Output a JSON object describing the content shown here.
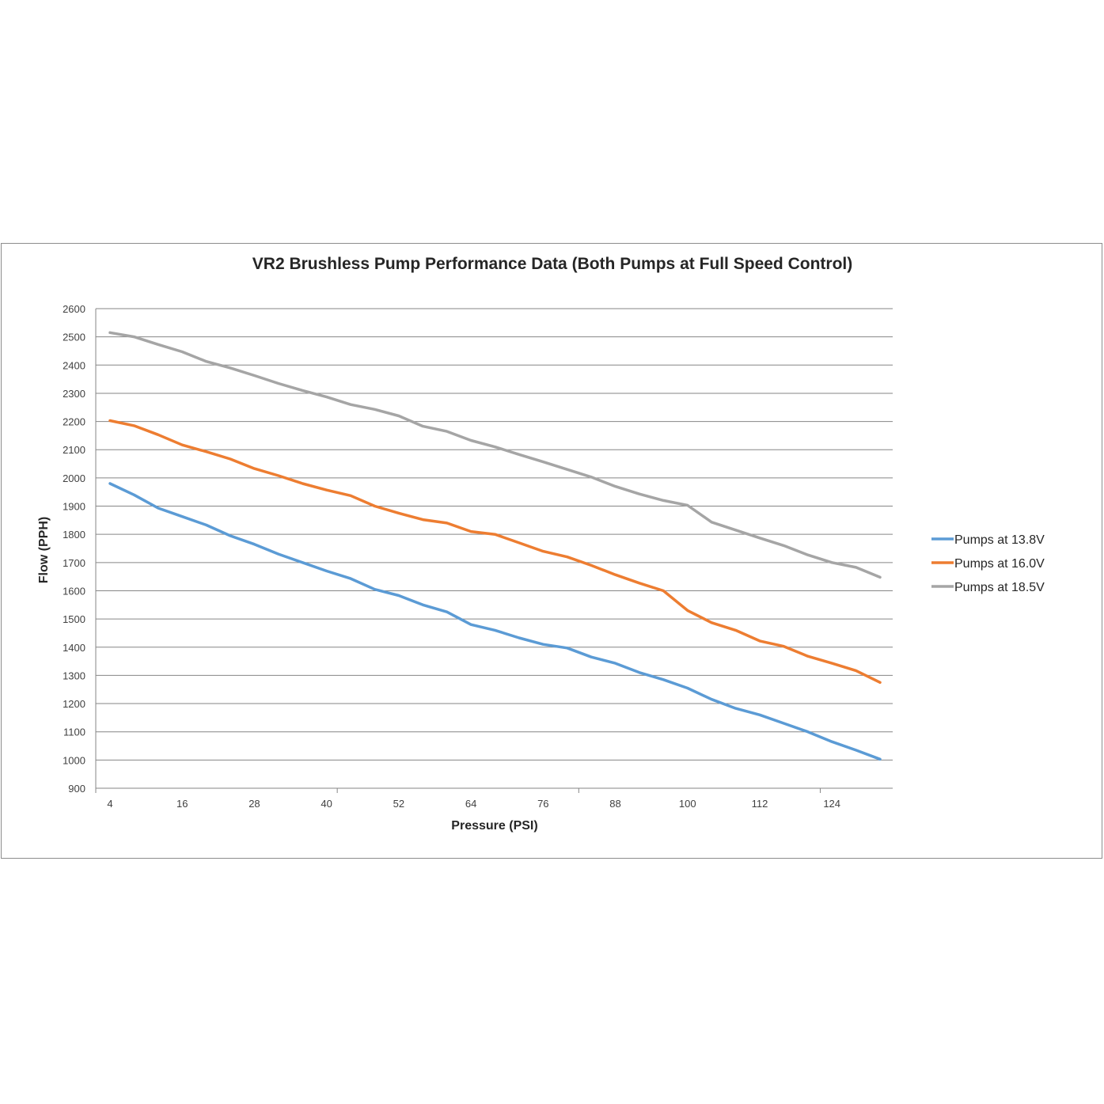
{
  "chart_data": {
    "type": "line",
    "title": "VR2 Brushless Pump Performance Data (Both  Pumps at Full Speed Control)",
    "xlabel": "Pressure (PSI)",
    "ylabel": "Flow (PPH)",
    "ylim": [
      900,
      2600
    ],
    "y_ticks": [
      900,
      1000,
      1100,
      1200,
      1300,
      1400,
      1500,
      1600,
      1700,
      1800,
      1900,
      2000,
      2100,
      2200,
      2300,
      2400,
      2500,
      2600
    ],
    "x_tick_labels": [
      "4",
      "16",
      "28",
      "40",
      "52",
      "64",
      "76",
      "88",
      "100",
      "112",
      "124"
    ],
    "x": [
      4,
      8,
      12,
      16,
      20,
      24,
      28,
      32,
      36,
      40,
      44,
      48,
      52,
      56,
      60,
      64,
      68,
      72,
      76,
      80,
      84,
      88,
      92,
      96,
      100,
      104,
      108,
      112,
      116,
      120,
      124,
      128,
      132
    ],
    "grid": true,
    "legend_position": "right",
    "series": [
      {
        "name": "Pumps at 13.8V",
        "color": "#5b9bd5",
        "values": [
          1980,
          1940,
          1893,
          1863,
          1833,
          1795,
          1765,
          1730,
          1700,
          1670,
          1643,
          1605,
          1583,
          1550,
          1525,
          1480,
          1460,
          1433,
          1410,
          1397,
          1365,
          1343,
          1310,
          1285,
          1255,
          1215,
          1183,
          1160,
          1130,
          1100,
          1065,
          1035,
          1003
        ]
      },
      {
        "name": "Pumps at 16.0V",
        "color": "#ed7d31",
        "values": [
          2203,
          2185,
          2153,
          2117,
          2093,
          2067,
          2033,
          2008,
          1980,
          1957,
          1937,
          1900,
          1875,
          1852,
          1840,
          1810,
          1800,
          1770,
          1740,
          1720,
          1690,
          1657,
          1627,
          1600,
          1530,
          1487,
          1460,
          1422,
          1403,
          1368,
          1343,
          1317,
          1275
        ]
      },
      {
        "name": "Pumps at 18.5V",
        "color": "#a5a5a5",
        "values": [
          2515,
          2500,
          2473,
          2447,
          2413,
          2390,
          2363,
          2335,
          2310,
          2287,
          2260,
          2243,
          2220,
          2183,
          2165,
          2133,
          2110,
          2083,
          2057,
          2030,
          2003,
          1970,
          1943,
          1920,
          1903,
          1843,
          1815,
          1787,
          1760,
          1727,
          1700,
          1683,
          1648
        ]
      }
    ]
  }
}
